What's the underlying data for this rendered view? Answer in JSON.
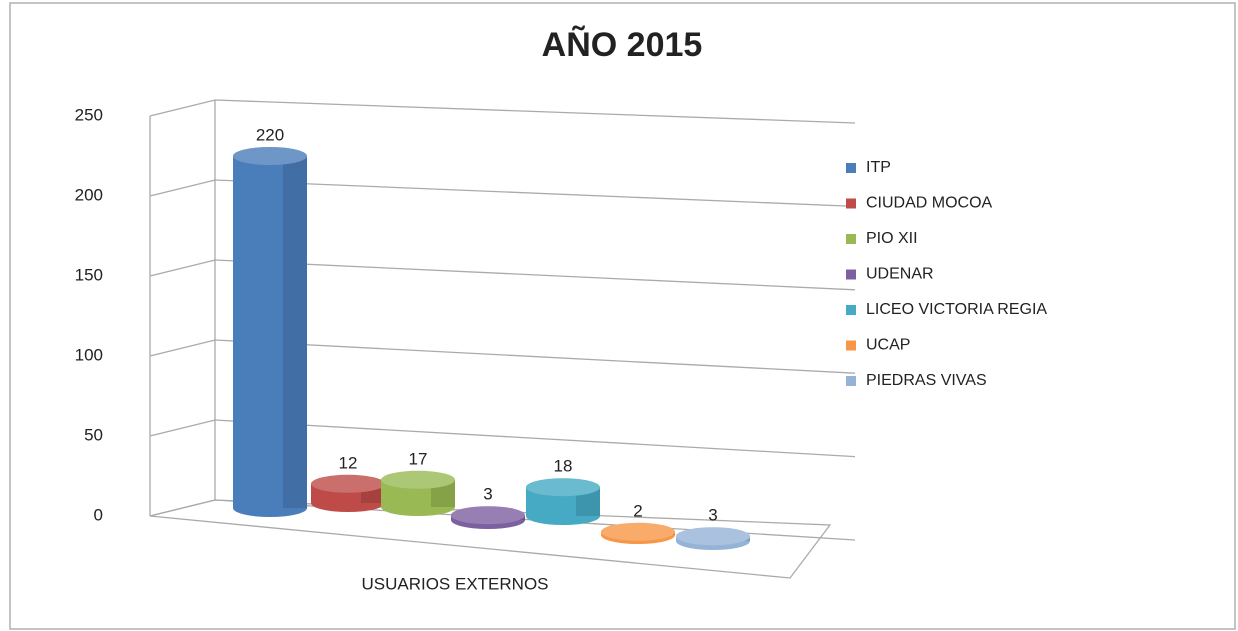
{
  "chart_data": {
    "type": "bar",
    "title": "AÑO 2015",
    "categories": [
      "USUARIOS EXTERNOS"
    ],
    "series": [
      {
        "name": "ITP",
        "color": "#4a7ebb",
        "values": [
          220
        ]
      },
      {
        "name": "CIUDAD MOCOA",
        "color": "#be4b48",
        "values": [
          12
        ]
      },
      {
        "name": "PIO XII",
        "color": "#98b954",
        "values": [
          17
        ]
      },
      {
        "name": "UDENAR",
        "color": "#7d60a0",
        "values": [
          3
        ]
      },
      {
        "name": "LICEO VICTORIA REGIA",
        "color": "#46aac5",
        "values": [
          18
        ]
      },
      {
        "name": "UCAP",
        "color": "#f79646",
        "values": [
          2
        ]
      },
      {
        "name": "PIEDRAS VIVAS",
        "color": "#95b3d7",
        "values": [
          3
        ]
      }
    ],
    "ylim": [
      0,
      250
    ],
    "yticks": [
      0,
      50,
      100,
      150,
      200,
      250
    ],
    "grid": true,
    "legend": "right"
  }
}
